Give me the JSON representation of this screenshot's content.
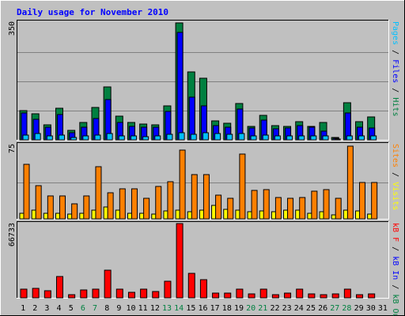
{
  "chart_data": {
    "type": "bar",
    "title": "Daily usage for November 2010",
    "days": [
      "1",
      "2",
      "3",
      "4",
      "5",
      "6",
      "7",
      "8",
      "9",
      "10",
      "11",
      "12",
      "13",
      "14",
      "15",
      "16",
      "17",
      "18",
      "19",
      "20",
      "21",
      "22",
      "23",
      "24",
      "25",
      "26",
      "27",
      "28",
      "29",
      "30",
      "31"
    ],
    "weekend_days": [
      "6",
      "7",
      "13",
      "14",
      "20",
      "21",
      "27",
      "28"
    ],
    "panels": [
      {
        "name": "requests",
        "max_label": "350",
        "ylim": [
          0,
          350
        ],
        "grid_fractions": [
          0.25,
          0.5,
          0.75
        ],
        "series": [
          {
            "name": "Hits",
            "color": "#008040",
            "values": [
              88,
              77,
              44,
              95,
              28,
              53,
              97,
              158,
              71,
              53,
              48,
              46,
              101,
              350,
              204,
              185,
              56,
              50,
              109,
              40,
              73,
              42,
              41,
              54,
              40,
              52,
              6,
              112,
              54,
              68,
              0
            ]
          },
          {
            "name": "Files",
            "color": "#0000ff",
            "values": [
              80,
              62,
              38,
              75,
              22,
              39,
              65,
              121,
              51,
              40,
              37,
              38,
              85,
              322,
              127,
              102,
              42,
              37,
              92,
              36,
              58,
              32,
              35,
              42,
              37,
              25,
              5,
              81,
              37,
              36,
              0
            ]
          },
          {
            "name": "Pages",
            "color": "#00c0ff",
            "values": [
              14,
              20,
              11,
              14,
              8,
              11,
              14,
              20,
              11,
              11,
              10,
              11,
              17,
              22,
              17,
              21,
              20,
              17,
              20,
              11,
              14,
              11,
              11,
              11,
              11,
              11,
              3,
              11,
              11,
              11,
              0
            ]
          }
        ],
        "legend": [
          "Pages",
          "/",
          "Files",
          "/",
          "Hits"
        ]
      },
      {
        "name": "visits",
        "max_label": "75",
        "ylim": [
          0,
          75
        ],
        "grid_fractions": [
          0.5
        ],
        "series": [
          {
            "name": "Visits",
            "color": "#ffff00",
            "values": [
              6,
              9,
              6,
              6,
              5,
              6,
              9,
              12,
              9,
              6,
              6,
              5,
              8,
              9,
              7,
              9,
              14,
              10,
              9,
              7,
              8,
              7,
              9,
              9,
              6,
              7,
              4,
              9,
              8,
              5,
              0
            ]
          },
          {
            "name": "Sites",
            "color": "#ff8000",
            "values": [
              56,
              34,
              23,
              23,
              15,
              23,
              53,
              27,
              31,
              31,
              21,
              33,
              38,
              70,
              45,
              45,
              24,
              21,
              66,
              29,
              30,
              22,
              21,
              22,
              28,
              30,
              21,
              74,
              37,
              37,
              0
            ]
          }
        ],
        "legend": [
          "Sites",
          "/",
          "Visits"
        ]
      },
      {
        "name": "kbytes",
        "max_label": "66733",
        "ylim": [
          0,
          66733
        ],
        "grid_fractions": [],
        "series": [
          {
            "name": "KBytes",
            "color": "#ff0000",
            "values": [
              8000,
              8500,
              6600,
              19000,
              3000,
              7000,
              8000,
              25000,
              7500,
              5000,
              7500,
              6000,
              15000,
              66733,
              22000,
              16000,
              4500,
              4500,
              8000,
              3800,
              7500,
              3000,
              4500,
              7500,
              3800,
              3000,
              3800,
              7500,
              3000,
              3200,
              0
            ]
          }
        ],
        "legend": [
          "KBytes",
          "F",
          "/",
          "KBytes",
          "In",
          "/",
          "KBytes",
          "Out"
        ]
      }
    ]
  }
}
